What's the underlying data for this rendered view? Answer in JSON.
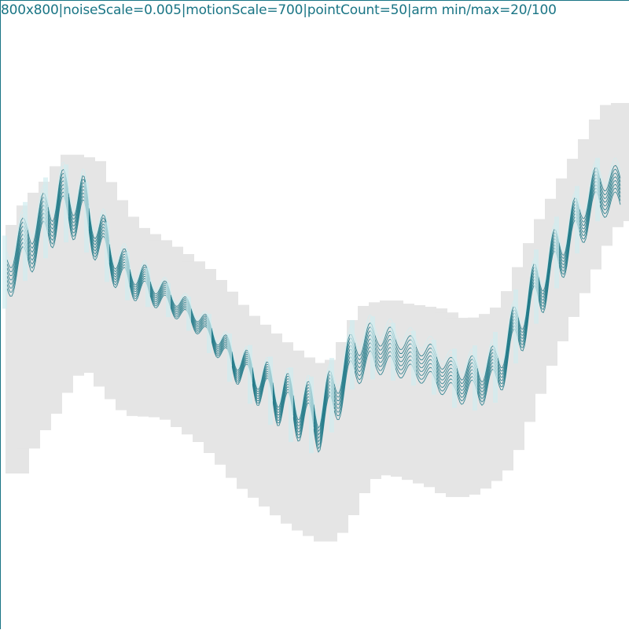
{
  "caption": "800x800|noiseScale=0.005|motionScale=700|pointCount=50|arm min/max=20/100",
  "params": {
    "noiseScale": 0.005,
    "motionScale": 700,
    "pointCount": 50,
    "arm_min": 20,
    "arm_max": 100
  },
  "colors": {
    "background": "#ffffff",
    "shadow": "#e5e5e5",
    "stroke": "#1a7585",
    "stroke_light": "#d2ecef",
    "caption": "#1a7585"
  }
}
